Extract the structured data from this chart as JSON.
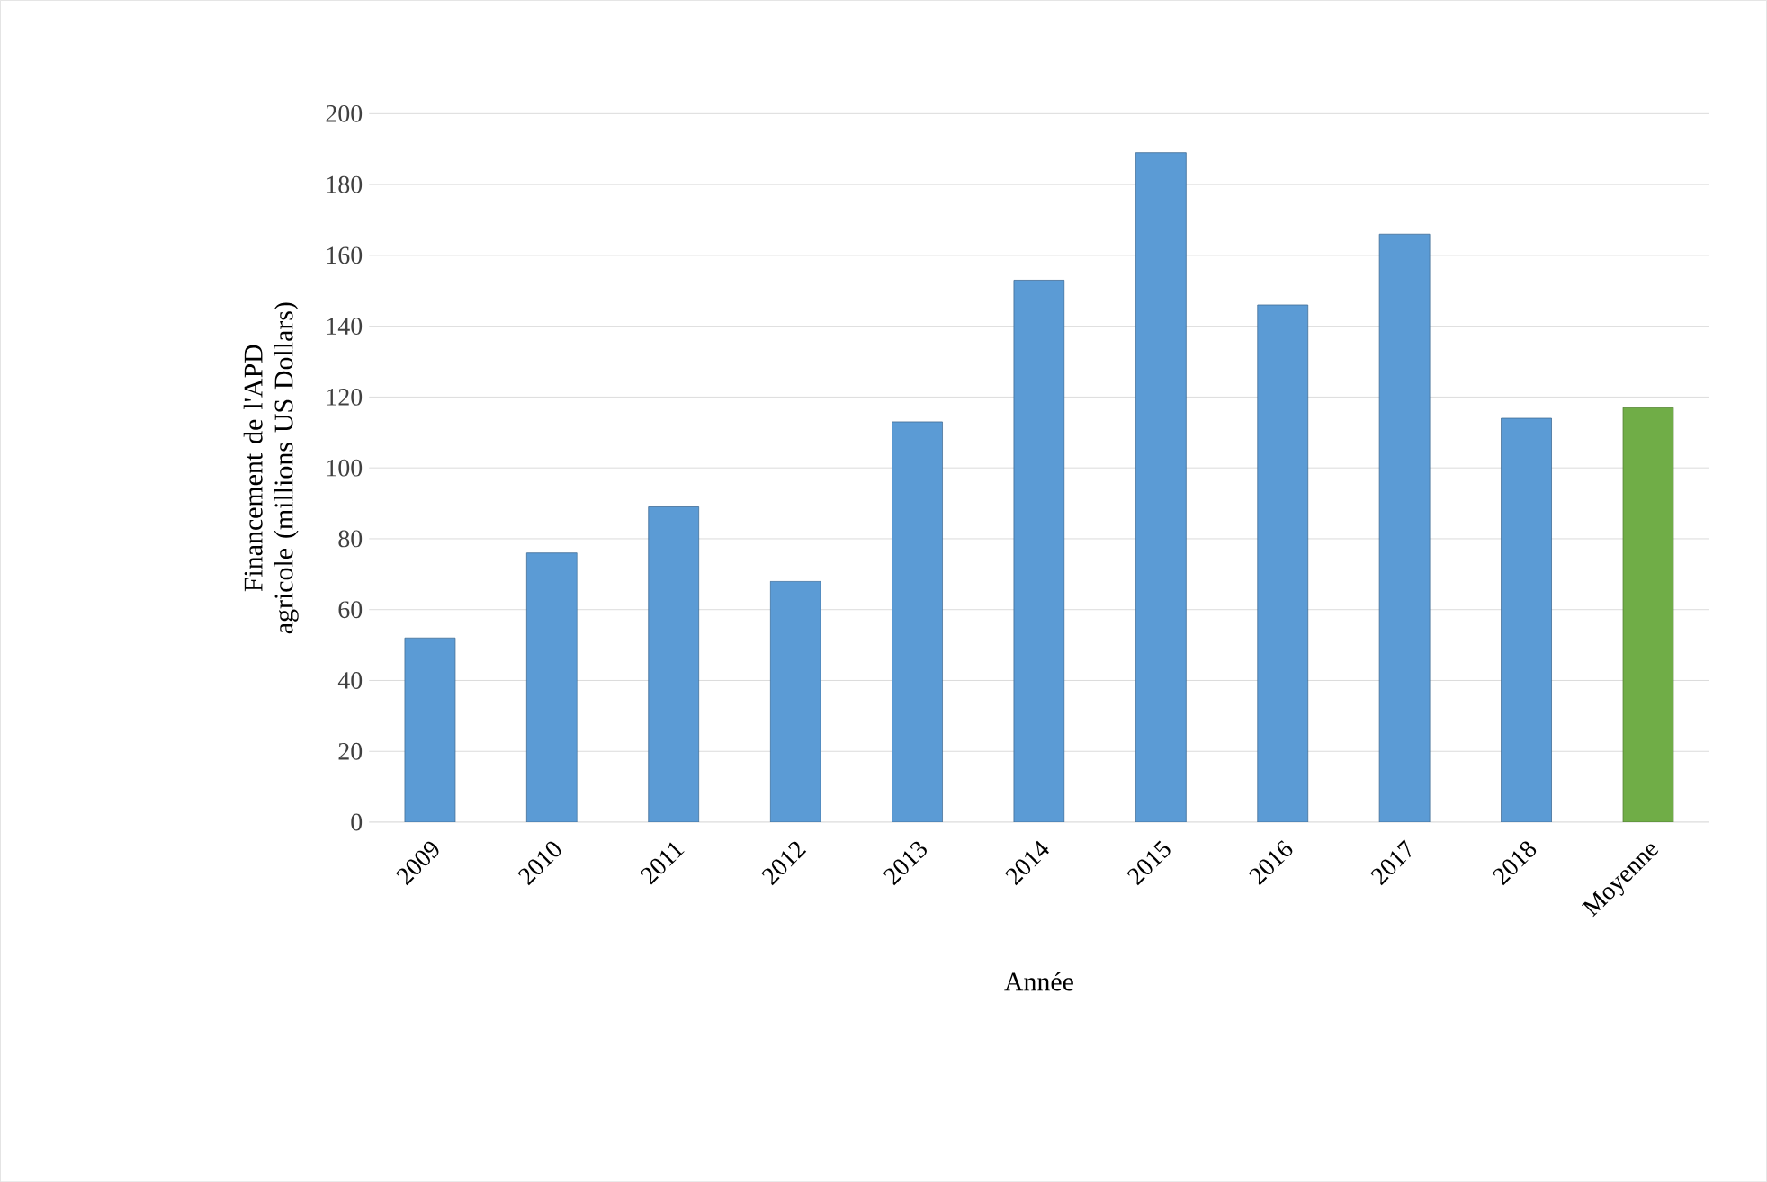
{
  "chart_data": {
    "type": "bar",
    "xlabel": "Année",
    "ylabel": "Financement de l'APD agricole (millions US Dollars)",
    "categories": [
      "2009",
      "2010",
      "2011",
      "2012",
      "2013",
      "2014",
      "2015",
      "2016",
      "2017",
      "2018",
      "Moyenne"
    ],
    "values": [
      52,
      76,
      89,
      68,
      113,
      153,
      189,
      146,
      166,
      114,
      117
    ],
    "colors": [
      "#5b9bd5",
      "#5b9bd5",
      "#5b9bd5",
      "#5b9bd5",
      "#5b9bd5",
      "#5b9bd5",
      "#5b9bd5",
      "#5b9bd5",
      "#5b9bd5",
      "#5b9bd5",
      "#70ad47"
    ],
    "ylim": [
      0,
      200
    ],
    "yticks": [
      0,
      20,
      40,
      60,
      80,
      100,
      120,
      140,
      160,
      180,
      200
    ],
    "grid": "y"
  }
}
